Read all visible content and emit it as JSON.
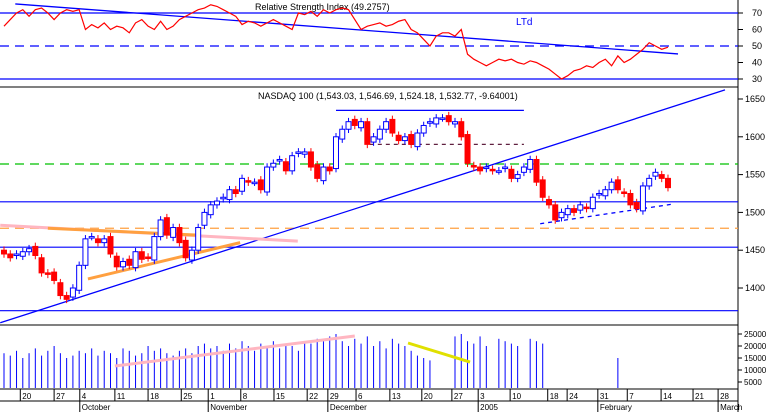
{
  "chart_data": {
    "type": "candlestick",
    "rsi_title": "Relative Strength Index (49.2757)",
    "rsi_annotation": "LTd",
    "price_title": "NASDAQ 100 (1,543.03, 1,546.69, 1,524.18, 1,532.77, -9.64001)",
    "rsi_ticks": [
      70,
      60,
      50,
      40,
      30
    ],
    "price_ticks": [
      1650,
      1600,
      1550,
      1500,
      1450,
      1400
    ],
    "volume_ticks": [
      "25000",
      "20000",
      "15000",
      "10000",
      "5000"
    ],
    "closes": [
      1445,
      1440,
      1445,
      1448,
      1452,
      1443,
      1420,
      1418,
      1410,
      1390,
      1385,
      1400,
      1430,
      1465,
      1468,
      1460,
      1465,
      1445,
      1428,
      1435,
      1430,
      1448,
      1438,
      1440,
      1468,
      1490,
      1470,
      1480,
      1460,
      1440,
      1450,
      1480,
      1500,
      1510,
      1515,
      1520,
      1530,
      1525,
      1545,
      1540,
      1540,
      1530,
      1560,
      1565,
      1570,
      1555,
      1575,
      1580,
      1580,
      1560,
      1545,
      1560,
      1555,
      1600,
      1610,
      1620,
      1615,
      1620,
      1590,
      1600,
      1610,
      1620,
      1605,
      1595,
      1600,
      1590,
      1605,
      1615,
      1620,
      1625,
      1625,
      1620,
      1620,
      1600,
      1565,
      1560,
      1555,
      1560,
      1555,
      1555,
      1560,
      1545,
      1550,
      1560,
      1570,
      1540,
      1520,
      1510,
      1490,
      1500,
      1505,
      1500,
      1510,
      1505,
      1520,
      1525,
      1530,
      1540,
      1530,
      1525,
      1510,
      1505,
      1535,
      1545,
      1553,
      1545,
      1532.77
    ],
    "rsi": [
      62,
      66,
      70,
      72,
      68,
      72,
      73,
      70,
      66,
      70,
      72,
      71,
      72,
      60,
      63,
      61,
      64,
      60,
      62,
      61,
      58,
      64,
      66,
      62,
      60,
      65,
      60,
      62,
      66,
      68,
      70,
      72,
      73,
      75,
      74,
      72,
      70,
      68,
      63,
      65,
      64,
      62,
      64,
      66,
      64,
      62,
      60,
      70,
      69,
      71,
      68,
      72,
      70,
      72,
      73,
      72,
      66,
      60,
      62,
      63,
      64,
      62,
      63,
      65,
      66,
      60,
      58,
      54,
      50,
      56,
      58,
      58,
      56,
      60,
      45,
      42,
      40,
      38,
      40,
      42,
      41,
      42,
      40,
      39,
      41,
      40,
      38,
      36,
      33,
      30,
      32,
      35,
      36,
      38,
      37,
      40,
      42,
      38,
      44,
      40,
      42,
      45,
      48,
      52,
      50,
      48,
      49.28
    ],
    "volume": [
      17000,
      16000,
      18000,
      15000,
      17000,
      19000,
      16000,
      18000,
      20000,
      17000,
      15000,
      16000,
      18000,
      17000,
      19000,
      16000,
      18000,
      17000,
      15000,
      19000,
      18000,
      16000,
      17000,
      20000,
      18000,
      19000,
      17000,
      16000,
      18000,
      19000,
      17000,
      20000,
      21000,
      19000,
      20000,
      18000,
      21000,
      19000,
      22000,
      20000,
      18000,
      21000,
      20000,
      22000,
      19000,
      21000,
      20000,
      18000,
      22000,
      21000,
      23000,
      22000,
      24000,
      25000,
      22000,
      20000,
      23000,
      21000,
      24000,
      20000,
      22000,
      19000,
      23000,
      21000,
      20000,
      18000,
      16000,
      15000,
      14000,
      0,
      0,
      0,
      24000,
      25000,
      22000,
      21000,
      24000,
      20000,
      0,
      23000,
      22000,
      21000,
      20000,
      0,
      23000,
      22000,
      21000
    ],
    "volume_extra": {
      "index": 98,
      "value": 15000
    },
    "lines": [
      {
        "name": "main-uptrend",
        "color": "#0000ff",
        "panel": "price",
        "pts": [
          -0.6,
          1354,
          115.1,
          1662
        ]
      },
      {
        "name": "support-dashed",
        "color": "#0000ff",
        "panel": "price",
        "dash": true,
        "pts": [
          85.6,
          1485,
          106.8,
          1511
        ]
      },
      {
        "name": "orange-uptrend",
        "color": "#ffa040",
        "panel": "price",
        "pts": [
          13.4,
          1412,
          37.7,
          1460
        ]
      },
      {
        "name": "pink-line",
        "color": "#ffb6c1",
        "panel": "price",
        "pts": [
          -0.6,
          1483,
          46.9,
          1462
        ]
      },
      {
        "name": "orange-upper",
        "color": "#ffa040",
        "panel": "price",
        "pts": [
          7,
          1479,
          31,
          1470
        ]
      },
      {
        "name": "resistance-top",
        "color": "#0000ff",
        "panel": "price",
        "pts": [
          53,
          1635,
          83,
          1635
        ]
      },
      {
        "name": "purple-dotted",
        "color": "#602040",
        "panel": "price",
        "dash": true,
        "pts": [
          58.4,
          1590,
          83,
          1590
        ]
      },
      {
        "name": "rsi-downtrend",
        "color": "#0000ff",
        "panel": "rsi",
        "pts": [
          1.8,
          75.5,
          107.6,
          45.2
        ]
      },
      {
        "name": "volume-yellow",
        "color": "#e0e000",
        "panel": "volume",
        "pts": [
          64.5,
          21250,
          74.4,
          13330
        ]
      },
      {
        "name": "volume-pink",
        "color": "#ffb6c1",
        "panel": "volume",
        "pts": [
          17.7,
          11670,
          56,
          24170
        ]
      }
    ],
    "hlines": [
      {
        "panel": "price",
        "value": 1514,
        "color": "#0000ff"
      },
      {
        "panel": "price",
        "value": 1454,
        "color": "#0000ff"
      },
      {
        "panel": "price",
        "value": 1370,
        "color": "#0000ff"
      },
      {
        "panel": "price",
        "value": 1564,
        "color": "#00c000",
        "dash": true
      },
      {
        "panel": "price",
        "value": 1479,
        "color": "#ffa040",
        "dash": true
      },
      {
        "panel": "rsi",
        "value": 70,
        "color": "#0000ff"
      },
      {
        "panel": "rsi",
        "value": 50,
        "color": "#0000ff",
        "dash": true
      },
      {
        "panel": "rsi",
        "value": 30,
        "color": "#0000ff"
      }
    ],
    "x_ticks": [
      {
        "l": "20",
        "i": 2.6
      },
      {
        "l": "27",
        "i": 8
      },
      {
        "l": "4",
        "i": 12.1
      },
      {
        "l": "11",
        "i": 17.7
      },
      {
        "l": "18",
        "i": 23
      },
      {
        "l": "25",
        "i": 28.3
      },
      {
        "l": "1",
        "i": 32.6
      },
      {
        "l": "8",
        "i": 37.8
      },
      {
        "l": "15",
        "i": 43.1
      },
      {
        "l": "22",
        "i": 48.4
      },
      {
        "l": "29",
        "i": 51.7
      },
      {
        "l": "6",
        "i": 56.2
      },
      {
        "l": "13",
        "i": 61.6
      },
      {
        "l": "20",
        "i": 66.7
      },
      {
        "l": "27",
        "i": 71.5
      },
      {
        "l": "3",
        "i": 75.7
      },
      {
        "l": "10",
        "i": 80.8
      },
      {
        "l": "18",
        "i": 86.8
      },
      {
        "l": "24",
        "i": 89.9
      },
      {
        "l": "31",
        "i": 94.8
      },
      {
        "l": "7",
        "i": 99.5
      },
      {
        "l": "14",
        "i": 104.9
      },
      {
        "l": "21",
        "i": 110
      },
      {
        "l": "28",
        "i": 114
      }
    ],
    "months": [
      {
        "l": "October",
        "i": 12.1
      },
      {
        "l": "November",
        "i": 32.6
      },
      {
        "l": "December",
        "i": 51.7
      },
      {
        "l": "2005",
        "i": 75.7
      },
      {
        "l": "February",
        "i": 94.8
      },
      {
        "l": "March",
        "i": 114
      }
    ]
  }
}
